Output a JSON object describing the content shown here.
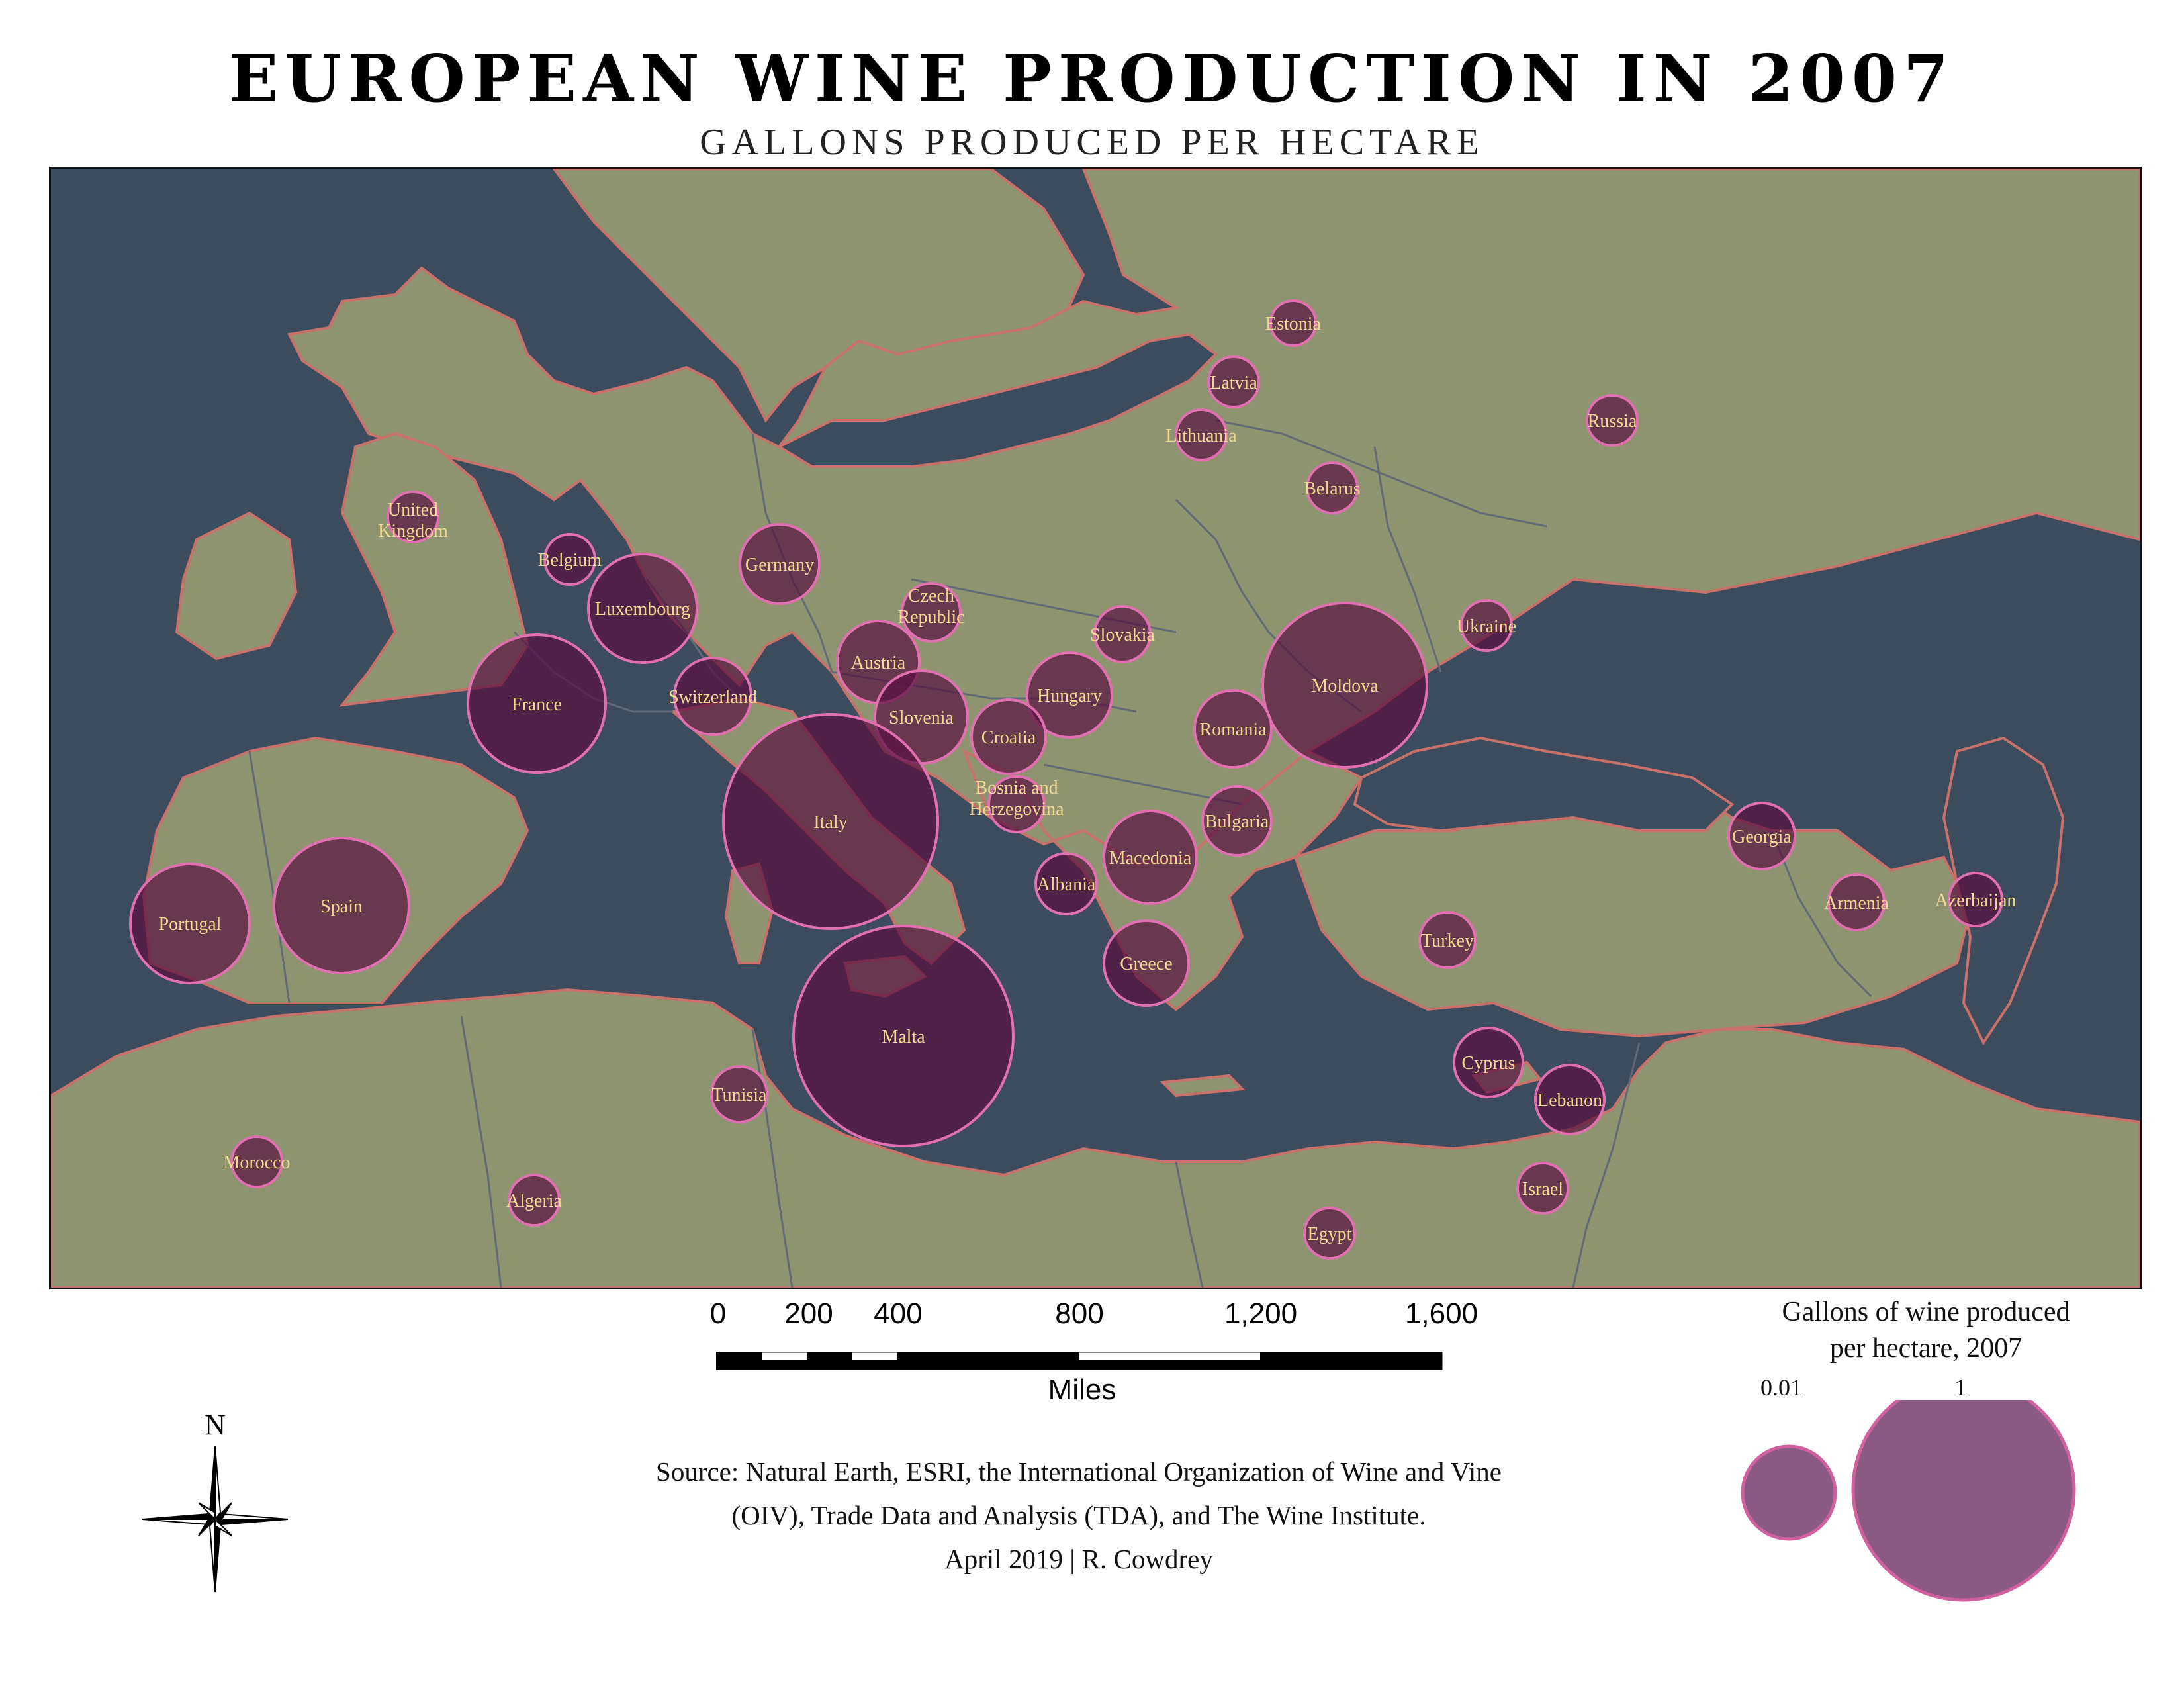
{
  "title": "EUROPEAN WINE PRODUCTION IN 2007",
  "subtitle": "GALLONS PRODUCED PER HECTARE",
  "colors": {
    "sea": "#3c4c5d",
    "land": "#8e9470",
    "coast": "#c8706a",
    "border": "#626a76",
    "bubble_fill": "#5a1040",
    "bubble_stroke": "#e070b0",
    "label": "#f0d890",
    "legend_fill": "#8a5a82",
    "legend_stroke": "#d0609e"
  },
  "countries": [
    {
      "name": "Estonia"
    },
    {
      "name": "Latvia"
    },
    {
      "name": "Lithuania"
    },
    {
      "name": "Russia"
    },
    {
      "name": "Belarus"
    },
    {
      "name": "United Kingdom"
    },
    {
      "name": "Belgium"
    },
    {
      "name": "Germany"
    },
    {
      "name": "Luxembourg"
    },
    {
      "name": "Czech Republic"
    },
    {
      "name": "Slovakia"
    },
    {
      "name": "Ukraine"
    },
    {
      "name": "Austria"
    },
    {
      "name": "Hungary"
    },
    {
      "name": "Moldova"
    },
    {
      "name": "France"
    },
    {
      "name": "Switzerland"
    },
    {
      "name": "Slovenia"
    },
    {
      "name": "Croatia"
    },
    {
      "name": "Romania"
    },
    {
      "name": "Italy"
    },
    {
      "name": "Bosnia and Herzegovina"
    },
    {
      "name": "Bulgaria"
    },
    {
      "name": "Georgia"
    },
    {
      "name": "Macedonia"
    },
    {
      "name": "Albania"
    },
    {
      "name": "Portugal"
    },
    {
      "name": "Spain"
    },
    {
      "name": "Armenia"
    },
    {
      "name": "Azerbaijan"
    },
    {
      "name": "Turkey"
    },
    {
      "name": "Greece"
    },
    {
      "name": "Malta"
    },
    {
      "name": "Cyprus"
    },
    {
      "name": "Tunisia"
    },
    {
      "name": "Lebanon"
    },
    {
      "name": "Morocco"
    },
    {
      "name": "Israel"
    },
    {
      "name": "Algeria"
    },
    {
      "name": "Egypt"
    }
  ],
  "scale_bar": {
    "ticks": [
      "0",
      "200",
      "400",
      "800",
      "1,200",
      "1,600"
    ],
    "units": "Miles"
  },
  "source": {
    "line1": "Source: Natural Earth, ESRI, the International Organization of Wine and Vine",
    "line2": "(OIV), Trade Data and Analysis (TDA), and The Wine Institute.",
    "line3": "April 2019 | R. Cowdrey"
  },
  "north_label": "N",
  "legend": {
    "title_line1": "Gallons of wine produced",
    "title_line2": "per hectare, 2007",
    "small_value": "0.01",
    "large_value": "1"
  }
}
